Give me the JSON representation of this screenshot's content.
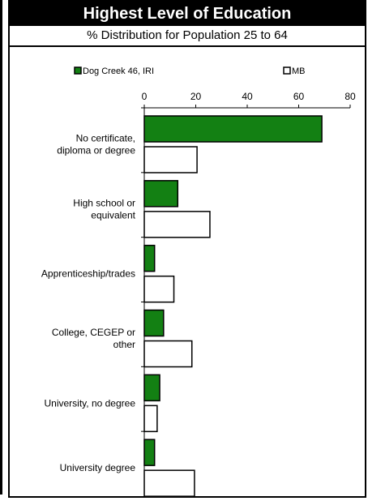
{
  "title": "Highest Level of Education",
  "subtitle": "% Distribution for Population 25 to 64",
  "colors": {
    "series_1": "#138013",
    "series_2": "#ffffff",
    "stroke": "#000000"
  },
  "chart_data": {
    "type": "bar",
    "orientation": "horizontal",
    "title": "Highest Level of Education",
    "subtitle": "% Distribution for Population 25 to 64",
    "categories": [
      [
        "No certificate,",
        "diploma or degree"
      ],
      [
        "High school or",
        "equivalent"
      ],
      [
        "Apprenticeship/trades"
      ],
      [
        "College, CEGEP or",
        "other"
      ],
      [
        "University, no degree"
      ],
      [
        "University degree"
      ]
    ],
    "series": [
      {
        "name": "Dog Creek 46, IRI",
        "values": [
          69,
          13,
          4,
          7.5,
          6,
          4
        ]
      },
      {
        "name": "MB",
        "values": [
          20.5,
          25.5,
          11.5,
          18.5,
          5,
          19.5
        ]
      }
    ],
    "xlim": [
      0,
      80
    ],
    "xticks": [
      0,
      20,
      40,
      60,
      80
    ],
    "xlabel": "",
    "ylabel": "",
    "grid": false,
    "legend_position": "top"
  }
}
